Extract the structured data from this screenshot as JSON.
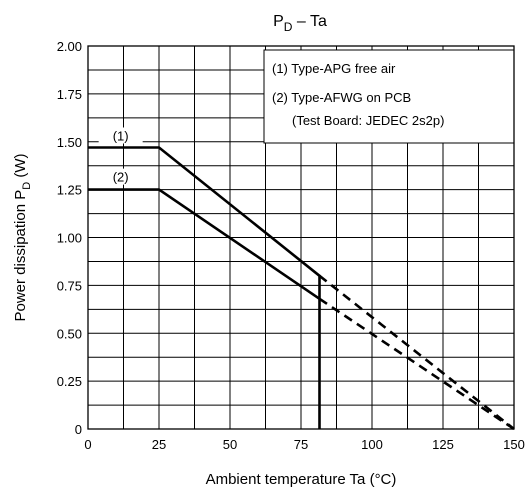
{
  "chart_data": {
    "type": "line",
    "title": {
      "main": "P",
      "sub": "D",
      "suffix": " – Ta"
    },
    "xlabel": "Ambient temperature   Ta   (°C)",
    "ylabel": {
      "main": "Power dissipation   P",
      "sub": "D",
      "suffix": "   (W)"
    },
    "xlim": [
      0,
      150
    ],
    "ylim": [
      0,
      2.0
    ],
    "x_ticks": [
      0,
      25,
      50,
      75,
      100,
      125,
      150
    ],
    "x_tick_labels": [
      "0",
      "25",
      "50",
      "75",
      "100",
      "125",
      "150"
    ],
    "y_ticks": [
      0,
      0.25,
      0.5,
      0.75,
      1.0,
      1.25,
      1.5,
      1.75,
      2.0
    ],
    "y_tick_labels": [
      "0",
      "0.25",
      "0.50",
      "0.75",
      "1.00",
      "1.25",
      "1.50",
      "1.75",
      "2.00"
    ],
    "x_grid_step": 12.5,
    "y_grid_step": 0.125,
    "grid": true,
    "legend": {
      "placement": "top-right",
      "entries": [
        "(1)  Type-APG free air",
        "(2)  Type-AFWG on PCB",
        "(Test Board: JEDEC 2s2p)"
      ]
    },
    "series": [
      {
        "name": "(1)",
        "solid": [
          [
            0,
            1.47
          ],
          [
            25,
            1.47
          ],
          [
            81.5,
            0.8
          ],
          [
            81.5,
            0
          ]
        ],
        "dashed": [
          [
            81.5,
            0.8
          ],
          [
            150,
            0
          ]
        ]
      },
      {
        "name": "(2)",
        "solid": [
          [
            0,
            1.25
          ],
          [
            25,
            1.25
          ],
          [
            81.5,
            0.68
          ]
        ],
        "dashed": [
          [
            81.5,
            0.68
          ],
          [
            150,
            0
          ]
        ]
      }
    ]
  }
}
